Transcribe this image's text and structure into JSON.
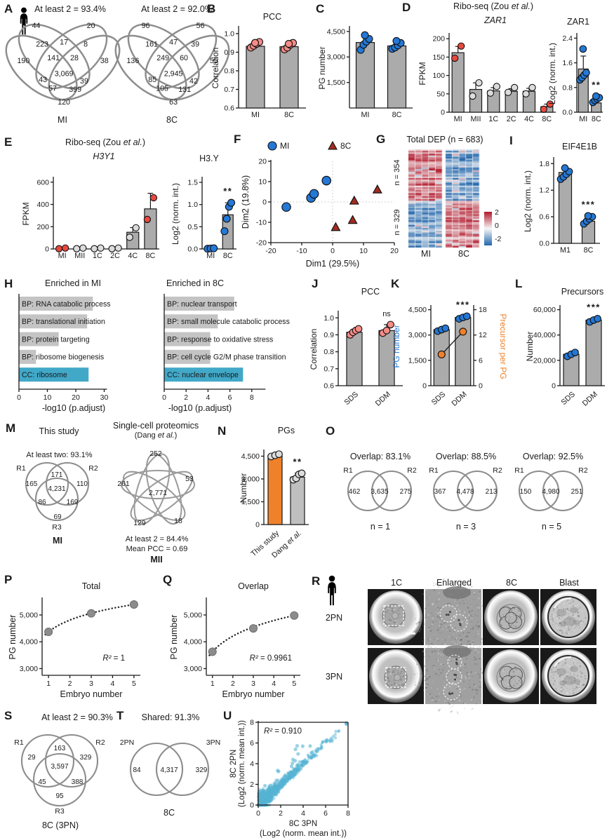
{
  "figure_bg": "#ffffff",
  "colors": {
    "bar_gray": "#ABABAB",
    "hbar_gray": "#C4C4C4",
    "bar_teal": "#41A8C8",
    "bar_orange": "#F0812B",
    "dot_salmon": "#F58C87",
    "dot_blue": "#2478D6",
    "dot_red": "#E8483F",
    "dot_gray": "#DCDCDC",
    "tri_darkred": "#A22C20",
    "scatter_teal": "#56B4D3",
    "axis": "#1a1a1a",
    "heat_pos": "#B2182B",
    "heat_neg": "#2166AC"
  },
  "panels": {
    "A": {
      "label": "A",
      "person_icon": "person-icon",
      "venns": [
        {
          "title": "At least 2 = 93.4%",
          "set_label": "MI",
          "values": [
            "44",
            "20",
            "223",
            "17",
            "8",
            "190",
            "141",
            "28",
            "38",
            "3,069",
            "43",
            "39",
            "57",
            "399",
            "120"
          ]
        },
        {
          "title": "At least 2 = 92.0%",
          "set_label": "8C",
          "values": [
            "96",
            "56",
            "161",
            "47",
            "39",
            "136",
            "249",
            "60",
            "55",
            "2,945",
            "85",
            "42",
            "105",
            "131",
            "63"
          ]
        }
      ]
    },
    "B": {
      "label": "B"
    },
    "C": {
      "label": "C"
    },
    "D": {
      "label": "D",
      "suptitle_pre": "Ribo-seq (Zou ",
      "suptitle_it": "et al.",
      "suptitle_post": ")",
      "gene": "ZAR1",
      "protein": "ZAR1"
    },
    "E": {
      "label": "E",
      "suptitle_pre": "Ribo-seq (Zou ",
      "suptitle_it": "et al.",
      "suptitle_post": ")",
      "gene": "H3Y1",
      "protein": "H3.Y"
    },
    "F": {
      "label": "F"
    },
    "G": {
      "label": "G",
      "title": "Total DEP (n = 683)",
      "row_label_top": "n = 354",
      "row_label_bottom": "n = 329",
      "col_labels": [
        "MI",
        "8C"
      ],
      "colorbar_ticks": [
        "2",
        "0",
        "-2"
      ]
    },
    "H": {
      "label": "H",
      "left_title": "Enriched in MI",
      "right_title": "Enriched in 8C",
      "xlabel": "-log10 (p.adjust)"
    },
    "I": {
      "label": "I",
      "title": "EIF4E1B"
    },
    "J": {
      "label": "J"
    },
    "K": {
      "label": "K"
    },
    "L": {
      "label": "L"
    },
    "M": {
      "label": "M",
      "left_title": "This study",
      "left_sub": "At least two: 93.1%",
      "venn3": {
        "set_labels": [
          "R1",
          "R2",
          "R3"
        ],
        "values": [
          "165",
          "171",
          "110",
          "4,231",
          "86",
          "169",
          "69"
        ],
        "bottom_label": "MI"
      },
      "right_title": "Single-cell proteomics",
      "right_sub_pre": "(Dang ",
      "right_sub_it": "et al.",
      "right_sub_post": ")",
      "venn5": {
        "values": [
          "252",
          "53",
          "261",
          "2,771",
          "129",
          "18"
        ],
        "caption1": "At least 2 = 84.4%",
        "caption2": "Mean PCC = 0.69",
        "bottom_label": "MII"
      }
    },
    "N": {
      "label": "N"
    },
    "O": {
      "label": "O",
      "venns": [
        {
          "title": "Overlap: 83.1%",
          "set_labels": [
            "R1",
            "R2"
          ],
          "values": [
            "462",
            "3,635",
            "275"
          ],
          "caption": "n = 1"
        },
        {
          "title": "Overlap: 88.5%",
          "set_labels": [
            "R1",
            "R2"
          ],
          "values": [
            "367",
            "4,478",
            "213"
          ],
          "caption": "n = 3"
        },
        {
          "title": "Overlap: 92.5%",
          "set_labels": [
            "R1",
            "R2"
          ],
          "values": [
            "150",
            "4,980",
            "251"
          ],
          "caption": "n = 5"
        }
      ]
    },
    "P": {
      "label": "P"
    },
    "Q": {
      "label": "Q"
    },
    "R": {
      "label": "R",
      "col_labels": [
        "1C",
        "Enlarged",
        "8C",
        "Blast"
      ],
      "row_labels": [
        "2PN",
        "3PN"
      ]
    },
    "S": {
      "label": "S",
      "title": "At least 2 = 90.3%",
      "venn3": {
        "set_labels": [
          "R1",
          "R2",
          "R3"
        ],
        "values": [
          "29",
          "163",
          "329",
          "3,597",
          "45",
          "388",
          "95"
        ]
      },
      "bottom_label": "8C (3PN)"
    },
    "T": {
      "label": "T",
      "title": "Shared: 91.3%",
      "venn2": {
        "set_labels": [
          "2PN",
          "3PN"
        ],
        "values": [
          "84",
          "4,317",
          "329"
        ]
      },
      "bottom_label": "8C"
    },
    "U": {
      "label": "U"
    }
  },
  "chart_data": [
    {
      "id": "B",
      "type": "bar",
      "title": "PCC",
      "ylabel": "Correlation",
      "ylim": [
        0.6,
        1.03
      ],
      "yticks": [
        0.6,
        0.7,
        0.8,
        0.9,
        1.0
      ],
      "ytick_labels": [
        "0.6",
        "0.7",
        "0.8",
        "0.9",
        "1.0"
      ],
      "categories": [
        "MI",
        "8C"
      ],
      "values": [
        0.932,
        0.93
      ],
      "dots": [
        [
          0.925,
          0.935,
          0.945,
          0.955,
          0.95
        ],
        [
          0.915,
          0.925,
          0.94,
          0.95,
          0.945
        ]
      ],
      "dot_color": "#F58C87"
    },
    {
      "id": "C",
      "type": "bar",
      "ylabel": "PG number",
      "ylim": [
        0,
        4700
      ],
      "yticks": [
        1500,
        3000,
        4500
      ],
      "ytick_labels": [
        "1,500",
        "3,000",
        "4,500"
      ],
      "categories": [
        "MI",
        "8C"
      ],
      "values": [
        3850,
        3650
      ],
      "dots": [
        [
          3420,
          3720,
          3900,
          4060,
          4280
        ],
        [
          3480,
          3560,
          3680,
          3820,
          3940
        ]
      ],
      "dot_color": "#2478D6"
    },
    {
      "id": "D1",
      "type": "bar",
      "ylabel": "FPKM",
      "ylim": [
        0,
        210
      ],
      "yticks": [
        0,
        50,
        100,
        150,
        200
      ],
      "ytick_labels": [
        "0",
        "50",
        "100",
        "150",
        "200"
      ],
      "categories": [
        "MI",
        "MII",
        "1C",
        "2C",
        "4C",
        "8C"
      ],
      "values": [
        162,
        62,
        58,
        57,
        57,
        15
      ],
      "errors": [
        17,
        18,
        9,
        7,
        8,
        7
      ],
      "dots": [
        [
          147,
          180
        ],
        [
          44,
          80
        ],
        [
          52,
          70
        ],
        [
          54,
          67
        ],
        [
          50,
          67
        ],
        [
          8,
          22
        ]
      ],
      "dot_colors": [
        "#E8483F",
        "#DCDCDC",
        "#DCDCDC",
        "#DCDCDC",
        "#DCDCDC",
        "#E8483F"
      ]
    },
    {
      "id": "D2",
      "type": "bar",
      "ylabel": "Log2 (norm. int.)",
      "ylim": [
        0,
        2.5
      ],
      "yticks": [
        0,
        0.8,
        1.6,
        2.4
      ],
      "ytick_labels": [
        "0.0",
        "0.8",
        "1.6",
        "2.4"
      ],
      "categories": [
        "MI",
        "8C"
      ],
      "values": [
        1.4,
        0.3
      ],
      "errors": [
        0.42,
        0.12
      ],
      "dots": [
        [
          1.05,
          1.12,
          1.2,
          1.28,
          2.05
        ],
        [
          0.32,
          0.38,
          0.43,
          0.47,
          0.52
        ]
      ],
      "dot_color": "#2478D6",
      "sig": {
        "cat": 1,
        "text": "**"
      }
    },
    {
      "id": "E1",
      "type": "bar",
      "ylabel": "FPKM",
      "ylim": [
        0,
        630
      ],
      "yticks": [
        0,
        200,
        400,
        600
      ],
      "ytick_labels": [
        "0",
        "200",
        "400",
        "600"
      ],
      "categories": [
        "MI",
        "MII",
        "1C",
        "2C",
        "4C",
        "8C"
      ],
      "values": [
        6,
        6,
        6,
        6,
        150,
        360
      ],
      "errors": [
        0,
        0,
        0,
        0,
        42,
        140
      ],
      "dots": [
        [
          2,
          8
        ],
        [
          2,
          8
        ],
        [
          2,
          8
        ],
        [
          2,
          8
        ],
        [
          105,
          190
        ],
        [
          265,
          460
        ]
      ],
      "dot_colors": [
        "#E8483F",
        "#DCDCDC",
        "#DCDCDC",
        "#DCDCDC",
        "#DCDCDC",
        "#E8483F"
      ]
    },
    {
      "id": "E2",
      "type": "bar",
      "ylabel": "Log2 (norm. int.)",
      "ylim": [
        0,
        1.58
      ],
      "yticks": [
        0,
        0.5,
        1.0,
        1.5
      ],
      "ytick_labels": [
        "0.0",
        "0.5",
        "1.0",
        "1.5"
      ],
      "categories": [
        "MI",
        "8C"
      ],
      "values": [
        0.02,
        0.77
      ],
      "errors": [
        0,
        0.27
      ],
      "dots": [
        [
          0.005,
          0.01,
          0.015
        ],
        [
          0.4,
          0.68,
          0.95,
          1.04
        ]
      ],
      "dot_color": "#2478D6",
      "sig": {
        "cat": 1,
        "text": "**"
      }
    },
    {
      "id": "F",
      "type": "scatter",
      "xlabel": "Dim1 (29.5%)",
      "ylabel": "Dim2 (19.8%)",
      "xlim": [
        -20,
        20
      ],
      "ylim": [
        -20,
        20
      ],
      "xticks": [
        -20,
        -10,
        0,
        10,
        20
      ],
      "yticks": [
        -20,
        -10,
        0,
        10,
        20
      ],
      "series": [
        {
          "name": "MI",
          "marker": "circle",
          "color": "#2478D6",
          "points": [
            [
              -15,
              -2.5
            ],
            [
              -7,
              2
            ],
            [
              -6,
              4
            ],
            [
              -2,
              10.5
            ]
          ]
        },
        {
          "name": "8C",
          "marker": "triangle",
          "color": "#A22C20",
          "points": [
            [
              1,
              -12.5
            ],
            [
              6.5,
              -9
            ],
            [
              7,
              0.5
            ],
            [
              14.5,
              6
            ]
          ]
        }
      ]
    },
    {
      "id": "G",
      "type": "heatmap",
      "title": "Total DEP (n = 683)",
      "n_up": 354,
      "n_down": 329,
      "col_groups": [
        "MI",
        "8C"
      ],
      "colorbar_ticks": [
        2,
        0,
        -2
      ]
    },
    {
      "id": "H1",
      "type": "hbar",
      "title": "Enriched in MI",
      "xlabel": "-log10 (p.adjust)",
      "xlim": [
        0,
        30
      ],
      "xticks": [
        0,
        10,
        20,
        30
      ],
      "items": [
        {
          "label": "BP: RNA catabolic process",
          "value": 26,
          "color": "#C4C4C4"
        },
        {
          "label": "BP: translational initiation",
          "value": 24,
          "color": "#C4C4C4"
        },
        {
          "label": "BP: protein targeting",
          "value": 14,
          "color": "#C4C4C4"
        },
        {
          "label": "BP: ribosome biogenesis",
          "value": 6,
          "color": "#C4C4C4"
        },
        {
          "label": "CC: ribosome",
          "value": 24.5,
          "color": "#41A8C8"
        }
      ]
    },
    {
      "id": "H2",
      "type": "hbar",
      "title": "Enriched in 8C",
      "xlabel": "-log10 (p.adjust)",
      "xlim": [
        0,
        9
      ],
      "xticks": [
        0,
        2,
        4,
        6,
        8
      ],
      "items": [
        {
          "label": "BP: nuclear transport",
          "value": 6.4,
          "color": "#C4C4C4"
        },
        {
          "label": "BP: small molecule catabolic process",
          "value": 4.9,
          "color": "#C4C4C4"
        },
        {
          "label": "BP: response to oxidative stress",
          "value": 4.2,
          "color": "#C4C4C4"
        },
        {
          "label": "BP: cell cycle G2/M phase transition",
          "value": 4.2,
          "color": "#C4C4C4"
        },
        {
          "label": "CC: nuclear envelope",
          "value": 7.2,
          "color": "#41A8C8"
        }
      ]
    },
    {
      "id": "I",
      "type": "bar",
      "title": "EIF4E1B",
      "ylabel": "Log2 (norm. int.)",
      "ylim": [
        0,
        1.9
      ],
      "yticks": [
        0,
        0.6,
        1.2,
        1.8
      ],
      "ytick_labels": [
        "0.0",
        "0.6",
        "1.2",
        "1.8"
      ],
      "categories": [
        "M1",
        "8C"
      ],
      "values": [
        1.6,
        0.5
      ],
      "dots": [
        [
          1.45,
          1.5,
          1.56,
          1.62,
          1.7
        ],
        [
          0.44,
          0.5,
          0.55,
          0.6,
          0.62
        ]
      ],
      "dot_color": "#2478D6",
      "sig": {
        "cat": 1,
        "text": "***"
      }
    },
    {
      "id": "J",
      "type": "bar",
      "title": "PCC",
      "ylabel": "Correlation",
      "ylim": [
        0.6,
        1.03
      ],
      "yticks": [
        0.6,
        0.7,
        0.8,
        0.9,
        1.0
      ],
      "ytick_labels": [
        "0.6",
        "0.7",
        "0.8",
        "0.9",
        "1.0"
      ],
      "categories": [
        "SDS",
        "DDM"
      ],
      "values": [
        0.915,
        0.925
      ],
      "errors": [
        0,
        0.035
      ],
      "dots": [
        [
          0.9,
          0.915,
          0.925,
          0.935
        ],
        [
          0.91,
          0.925,
          0.96
        ]
      ],
      "dot_color": "#F58C87",
      "sig": {
        "cat": 1,
        "text": "ns"
      }
    },
    {
      "id": "K",
      "type": "bar_dual",
      "left_ylabel": "PG number",
      "right_ylabel": "Precursor per PG",
      "left_color": "#2478D6",
      "right_color": "#F0812B",
      "ylim": [
        0,
        4650
      ],
      "yticks": [
        0,
        1500,
        3000,
        4500
      ],
      "ytick_labels": [
        "0",
        "1,500",
        "3,000",
        "4,500"
      ],
      "right_ylim": [
        0,
        18.6
      ],
      "right_yticks": [
        0,
        6,
        12,
        18
      ],
      "right_ytick_labels": [
        "0",
        "6",
        "12",
        "18"
      ],
      "categories": [
        "SDS",
        "DDM"
      ],
      "values": [
        3320,
        4040
      ],
      "dots": [
        [
          3230,
          3320,
          3400
        ],
        [
          3960,
          4040,
          4110
        ]
      ],
      "dot_color": "#2478D6",
      "line_values": [
        7.4,
        12.8
      ],
      "sig": {
        "cat": 1,
        "text": "***"
      }
    },
    {
      "id": "L",
      "type": "bar",
      "title": "Precursors",
      "ylabel": "Number",
      "ylim": [
        0,
        62000
      ],
      "yticks": [
        0,
        20000,
        40000,
        60000
      ],
      "ytick_labels": [
        "0",
        "20,000",
        "40,000",
        "60,000"
      ],
      "categories": [
        "SDS",
        "DDM"
      ],
      "values": [
        24800,
        51800
      ],
      "dots": [
        [
          23200,
          24800,
          26200
        ],
        [
          50400,
          51800,
          52900
        ]
      ],
      "dot_color": "#2478D6",
      "sig": {
        "cat": 1,
        "text": "***"
      }
    },
    {
      "id": "N",
      "type": "bar",
      "title": "PGs",
      "ylabel": "Number",
      "ylim": [
        0,
        4800
      ],
      "yticks": [
        0,
        1500,
        3000,
        4500
      ],
      "ytick_labels": [
        "0",
        "1,500",
        "3,000",
        "4,500"
      ],
      "categories": [
        "This study",
        "Dang et al."
      ],
      "values": [
        4560,
        3120
      ],
      "errors": [
        0,
        260
      ],
      "bar_colors": [
        "#F0812B",
        "#BFBFBF"
      ],
      "dots": [
        [
          4480,
          4560,
          4630
        ],
        [
          2950,
          3040,
          3300,
          3370
        ]
      ],
      "dot_color": "#DCDCDC",
      "sig": {
        "cat": 1,
        "text": "**"
      }
    },
    {
      "id": "P",
      "type": "scatter_fit",
      "title": "Total",
      "xlabel": "Embryo number",
      "ylabel": "PG number",
      "xlim": [
        0.7,
        5.3
      ],
      "ylim": [
        2750,
        5600
      ],
      "xticks": [
        1,
        2,
        3,
        4,
        5
      ],
      "yticks": [
        3000,
        4000,
        5000
      ],
      "ytick_labels": [
        "3,000",
        "4,000",
        "5,000"
      ],
      "points": [
        [
          1,
          4370
        ],
        [
          3,
          5060
        ],
        [
          5,
          5390
        ]
      ],
      "trend": "log",
      "ann_it": "R²",
      "ann_rest": " = 1"
    },
    {
      "id": "Q",
      "type": "scatter_fit",
      "title": "Overlap",
      "xlabel": "Embryo number",
      "ylabel": "PG number",
      "xlim": [
        0.7,
        5.3
      ],
      "ylim": [
        2750,
        5600
      ],
      "xticks": [
        1,
        2,
        3,
        4,
        5
      ],
      "yticks": [
        3000,
        4000,
        5000
      ],
      "ytick_labels": [
        "3,000",
        "4,000",
        "5,000"
      ],
      "points": [
        [
          1,
          3630
        ],
        [
          3,
          4500
        ],
        [
          5,
          4980
        ]
      ],
      "trend": "log",
      "ann_it": "R²",
      "ann_rest": " = 0.9961"
    },
    {
      "id": "U",
      "type": "scatter_dense",
      "ann_it": "R²",
      "ann_rest": " = 0.910",
      "xlabel_line1": "8C 3PN",
      "xlabel_line2": "(Log2 (norm. mean int.))",
      "ylabel_line1": "8C 2PN",
      "ylabel_line2": "(Log2 (norm. mean int.))",
      "xlim": [
        0,
        8
      ],
      "ylim": [
        0,
        8
      ],
      "xticks": [
        0,
        2,
        4,
        6,
        8
      ],
      "yticks": [
        0,
        2,
        4,
        6,
        8
      ],
      "n_points": 880,
      "color": "#56B4D3"
    }
  ]
}
